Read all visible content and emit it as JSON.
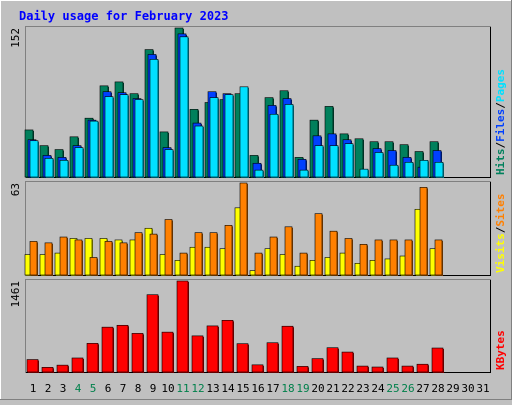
{
  "chart_data": {
    "type": "bar",
    "title": "Daily usage for February 2023",
    "x_ticks": [
      "1",
      "2",
      "3",
      "4",
      "5",
      "6",
      "7",
      "8",
      "9",
      "10",
      "11",
      "12",
      "13",
      "14",
      "15",
      "16",
      "17",
      "18",
      "19",
      "20",
      "21",
      "22",
      "23",
      "24",
      "25",
      "26",
      "27",
      "28",
      "29",
      "30",
      "31"
    ],
    "weekend_days": [
      4,
      5,
      11,
      12,
      18,
      19,
      25,
      26
    ],
    "colors": {
      "title": "#0000ff",
      "tick_weekday": "#000000",
      "tick_weekend": "#00804b",
      "hits": "#00805c",
      "files": "#0040ff",
      "pages": "#00e0ff",
      "visits": "#ffff00",
      "sites": "#ff8000",
      "kbytes": "#ff0000",
      "separator": "#000000"
    },
    "panels": [
      {
        "id": "top",
        "ymax_label": "152",
        "ylim": [
          0,
          152
        ],
        "legend": [
          {
            "text": "Hits",
            "color": "#00805c"
          },
          {
            "text": "/",
            "color": "#000000"
          },
          {
            "text": "Files",
            "color": "#0040ff"
          },
          {
            "text": "/",
            "color": "#000000"
          },
          {
            "text": "Pages",
            "color": "#00e0ff"
          }
        ],
        "series": [
          {
            "name": "Hits",
            "values": [
              48,
              32,
              28,
              41,
              60,
              93,
              97,
              85,
              130,
              46,
              152,
              69,
              76,
              79,
              85,
              22,
              81,
              88,
              20,
              58,
              72,
              44,
              39,
              36,
              36,
              33,
              26,
              36,
              0,
              0,
              0
            ]
          },
          {
            "name": "Files",
            "values": [
              38,
              22,
              20,
              32,
              58,
              87,
              86,
              80,
              125,
              30,
              146,
              55,
              87,
              85,
              0,
              14,
              73,
              80,
              18,
              42,
              44,
              38,
              0,
              29,
              27,
              20,
              10,
              27,
              0,
              0,
              0
            ]
          },
          {
            "name": "Pages",
            "values": [
              37,
              19,
              17,
              30,
              57,
              82,
              84,
              79,
              120,
              28,
              143,
              52,
              81,
              84,
              92,
              7,
              64,
              74,
              7,
              32,
              32,
              34,
              8,
              25,
              12,
              15,
              17,
              15,
              0,
              0,
              0
            ]
          }
        ]
      },
      {
        "id": "middle",
        "ymax_label": "63",
        "ylim": [
          0,
          63
        ],
        "legend": [
          {
            "text": "Visits",
            "color": "#ffff00"
          },
          {
            "text": "/",
            "color": "#000000"
          },
          {
            "text": "Sites",
            "color": "#ff8000"
          }
        ],
        "series": [
          {
            "name": "Visits",
            "values": [
              14,
              14,
              15,
              25,
              25,
              25,
              24,
              24,
              32,
              14,
              10,
              19,
              19,
              18,
              46,
              3,
              18,
              14,
              6,
              10,
              12,
              15,
              8,
              10,
              11,
              13,
              45,
              18,
              0,
              0,
              0
            ]
          },
          {
            "name": "Sites",
            "values": [
              23,
              22,
              26,
              24,
              12,
              23,
              22,
              29,
              28,
              38,
              15,
              29,
              29,
              34,
              63,
              15,
              26,
              33,
              15,
              42,
              30,
              25,
              21,
              24,
              24,
              24,
              60,
              24,
              0,
              0,
              0
            ]
          }
        ]
      },
      {
        "id": "bottom",
        "ymax_label": "1461",
        "ylim": [
          0,
          1461
        ],
        "legend": [
          {
            "text": "KBytes",
            "color": "#ff0000"
          }
        ],
        "series": [
          {
            "name": "KBytes",
            "values": [
              200,
              75,
              110,
              225,
              460,
              720,
              750,
              620,
              1241,
              640,
              1461,
              580,
              740,
              830,
              455,
              115,
              470,
              735,
              90,
              215,
              390,
              320,
              95,
              80,
              225,
              95,
              125,
              385,
              0,
              0,
              0
            ]
          }
        ]
      }
    ]
  }
}
